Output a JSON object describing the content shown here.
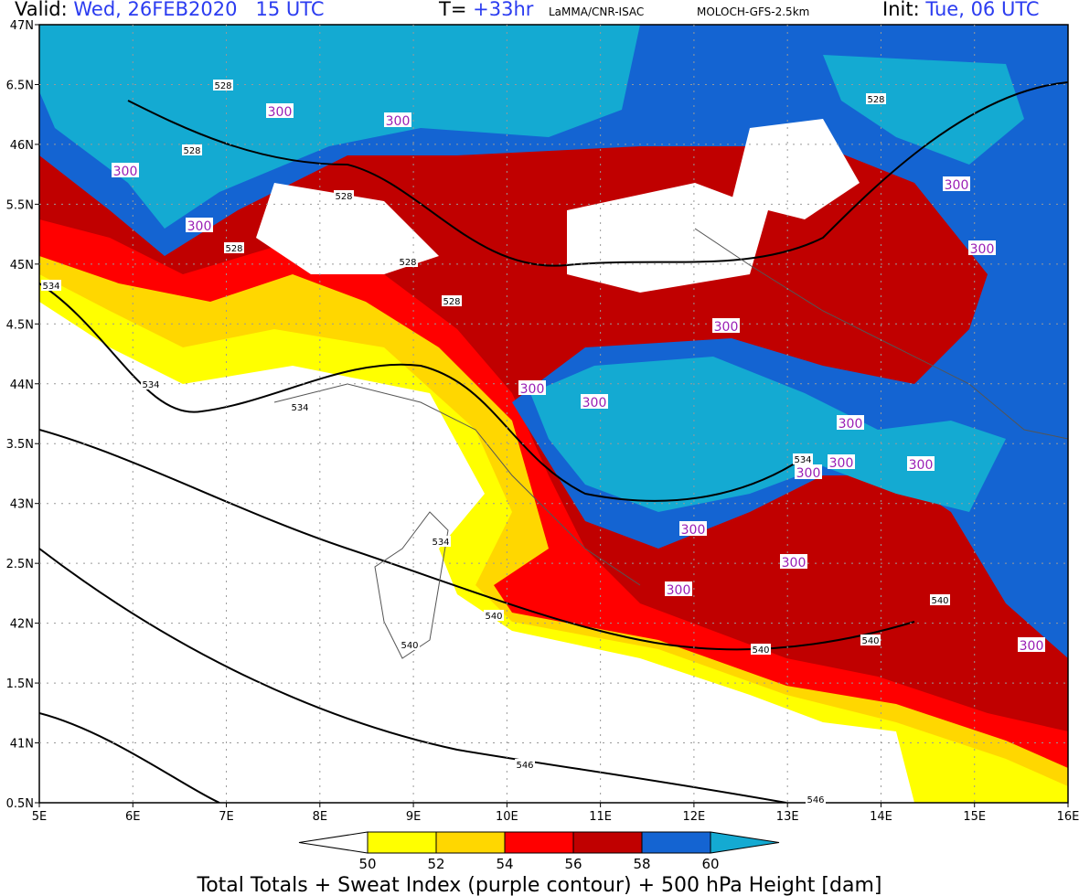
{
  "header": {
    "valid_label": "Valid:",
    "valid_value": "Wed, 26FEB2020   15 UTC",
    "t_label": "T=",
    "t_value": "+33hr",
    "institution": "LaMMA/CNR-ISAC",
    "model": "MOLOCH-GFS-2.5km",
    "init_label": "Init:",
    "init_value": "Tue, 06 UTC"
  },
  "axes": {
    "lat_labels": [
      "47N",
      "6.5N",
      "46N",
      "5.5N",
      "45N",
      "4.5N",
      "44N",
      "3.5N",
      "43N",
      "2.5N",
      "42N",
      "1.5N",
      "41N",
      "0.5N"
    ],
    "lon_labels": [
      "5E",
      "6E",
      "7E",
      "8E",
      "9E",
      "10E",
      "11E",
      "12E",
      "13E",
      "14E",
      "15E",
      "16E"
    ]
  },
  "colorbar": {
    "ticks": [
      "50",
      "52",
      "54",
      "56",
      "58",
      "60"
    ],
    "colors": [
      "#ffffff",
      "#ffff00",
      "#ffd700",
      "#ff0000",
      "#c00000",
      "#1464d2",
      "#14aad2"
    ]
  },
  "contour_labels": {
    "height": [
      "528",
      "528",
      "528",
      "528",
      "528",
      "528",
      "528",
      "534",
      "534",
      "534",
      "534",
      "534",
      "540",
      "540",
      "540",
      "540",
      "540",
      "540",
      "546",
      "546"
    ],
    "sweat": [
      "300",
      "300",
      "300",
      "300",
      "300",
      "300",
      "300",
      "300",
      "300",
      "300",
      "300",
      "300",
      "300",
      "300",
      "300",
      "300",
      "300"
    ]
  },
  "footer": {
    "caption": "Total Totals + Sweat Index (purple contour) + 500 hPa Height [dam]"
  }
}
